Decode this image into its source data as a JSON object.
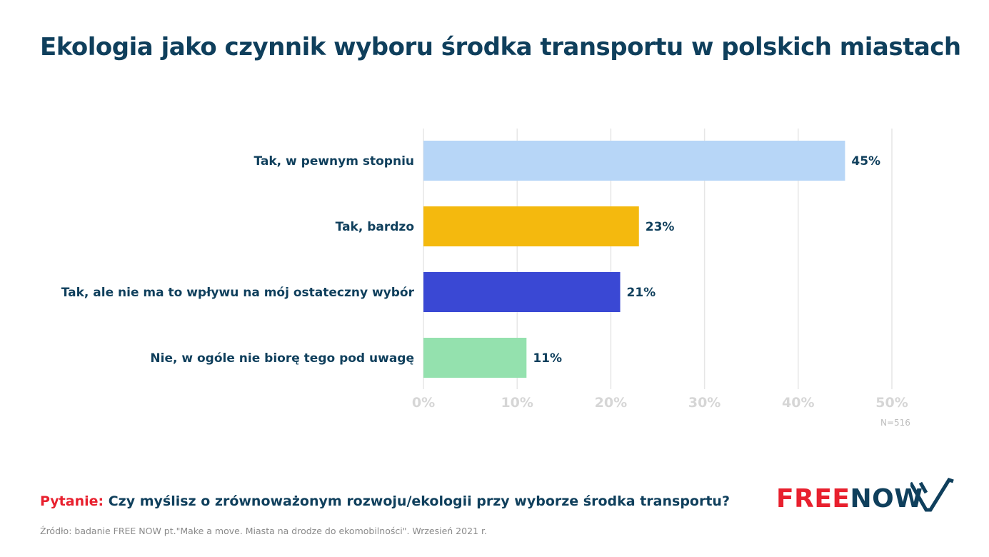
{
  "title": "Ekologia jako czynnik wyboru środka transportu w polskich miastach",
  "chart_data": {
    "type": "bar",
    "orientation": "horizontal",
    "title": "Ekologia jako czynnik wyboru środka transportu w polskich miastach",
    "categories": [
      "Tak, w pewnym stopniu",
      "Tak, bardzo",
      "Tak, ale nie ma to wpływu na mój ostateczny wybór",
      "Nie, w ogóle nie biorę tego pod uwagę"
    ],
    "values": [
      45,
      23,
      21,
      11
    ],
    "value_labels": [
      "45%",
      "23%",
      "21%",
      "11%"
    ],
    "colors": [
      "#b7d6f7",
      "#f4b90e",
      "#3a48d4",
      "#94e1ae"
    ],
    "xlim": [
      0,
      50
    ],
    "ticks": [
      0,
      10,
      20,
      30,
      40,
      50
    ],
    "tick_labels": [
      "0%",
      "10%",
      "20%",
      "30%",
      "40%",
      "50%"
    ],
    "grid": true,
    "xlabel": "",
    "ylabel": ""
  },
  "sample_note": "N=516",
  "question": {
    "prefix": "Pytanie:",
    "text": "Czy myślisz o zrównoważonym rozwoju/ekologii przy wyborze środka transportu?"
  },
  "source": "Źródło: badanie FREE NOW pt.\"Make a move. Miasta na drodze do ekomobilności\". Wrzesień 2021 r.",
  "logo": {
    "part1": "FREE",
    "part2": "NOW",
    "icon": "freenow-chevron-icon"
  }
}
